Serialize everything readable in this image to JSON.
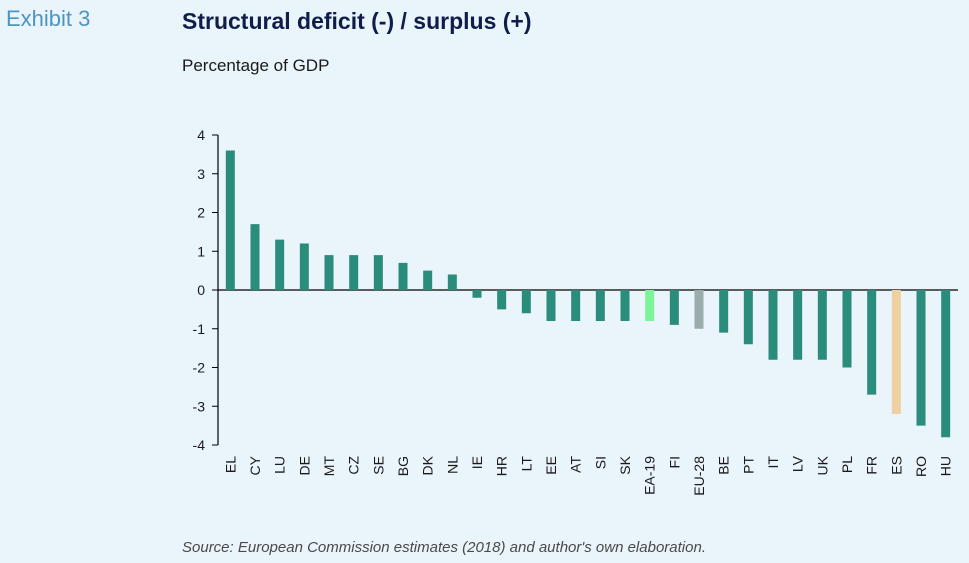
{
  "header": {
    "exhibit": "Exhibit 3",
    "title": "Structural deficit (-) / surplus (+)",
    "subtitle": "Percentage of GDP"
  },
  "footer": {
    "source": "Source: European Commission estimates (2018) and author's own elaboration."
  },
  "colors": {
    "bar_default": "#2a8c7a",
    "bar_ea19": "#7cf59a",
    "bar_eu28": "#9aacab",
    "bar_es": "#efd1a1",
    "axis": "#000000"
  },
  "chart_data": {
    "type": "bar",
    "title": "Structural deficit (-) / surplus (+)",
    "ylabel": "Percentage of GDP",
    "ylim": [
      -4,
      4
    ],
    "yticks": [
      4,
      3,
      2,
      1,
      0,
      -1,
      -2,
      -3,
      -4
    ],
    "grid": false,
    "categories": [
      "EL",
      "CY",
      "LU",
      "DE",
      "MT",
      "CZ",
      "SE",
      "BG",
      "DK",
      "NL",
      "IE",
      "HR",
      "LT",
      "EE",
      "AT",
      "SI",
      "SK",
      "EA-19",
      "FI",
      "EU-28",
      "BE",
      "PT",
      "IT",
      "LV",
      "UK",
      "PL",
      "FR",
      "ES",
      "RO",
      "HU"
    ],
    "values": [
      3.6,
      1.7,
      1.3,
      1.2,
      0.9,
      0.9,
      0.9,
      0.7,
      0.5,
      0.4,
      -0.2,
      -0.5,
      -0.6,
      -0.8,
      -0.8,
      -0.8,
      -0.8,
      -0.8,
      -0.9,
      -1.0,
      -1.1,
      -1.4,
      -1.8,
      -1.8,
      -1.8,
      -2.0,
      -2.7,
      -3.2,
      -3.5,
      -3.8
    ],
    "highlight": {
      "EA-19": "bar_ea19",
      "EU-28": "bar_eu28",
      "ES": "bar_es"
    }
  }
}
